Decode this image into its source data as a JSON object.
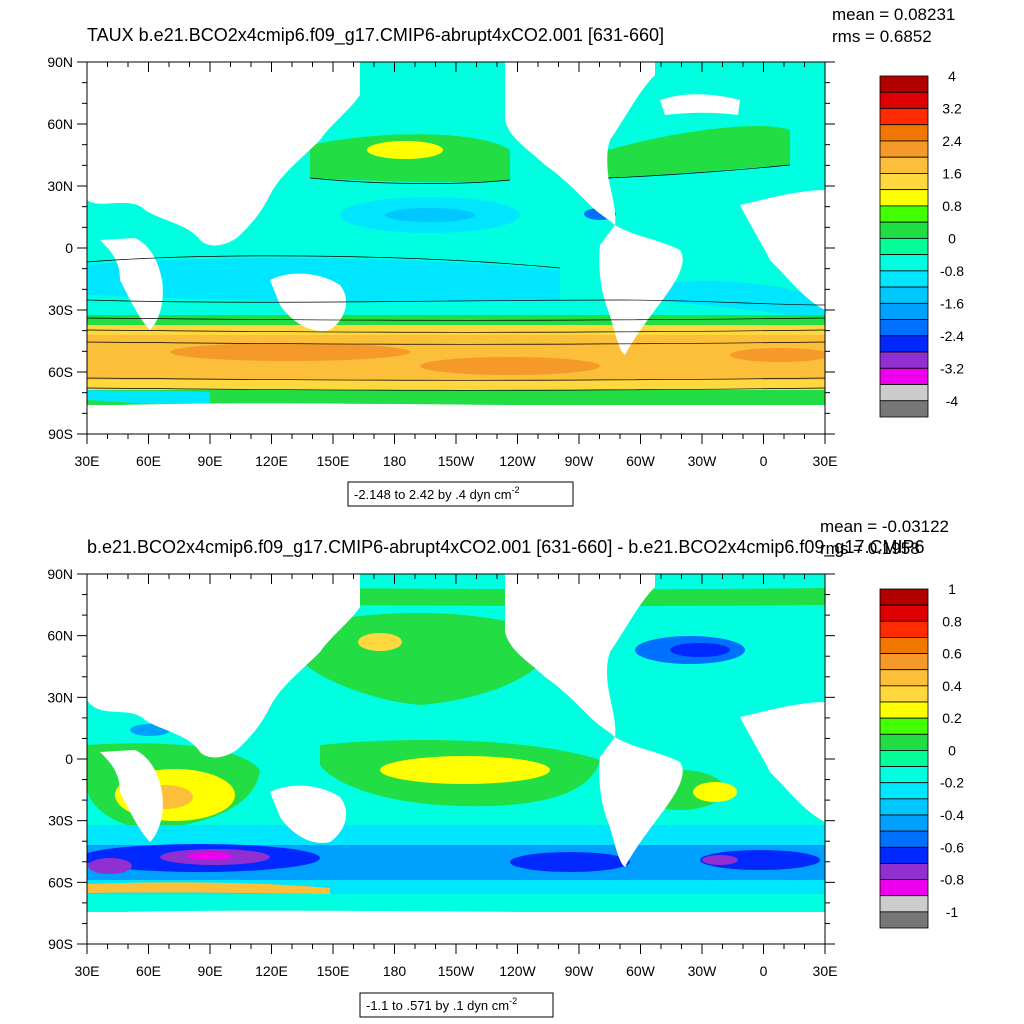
{
  "chart_data": [
    {
      "type": "heatmap",
      "title": "TAUX b.e21.BCO2x4cmip6.f09_g17.CMIP6-abrupt4xCO2.001 [631-660]",
      "stats": {
        "mean": "mean = 0.08231",
        "rms": "rms = 0.6852"
      },
      "x_ticks": [
        "30E",
        "60E",
        "90E",
        "120E",
        "150E",
        "180",
        "150W",
        "120W",
        "90W",
        "60W",
        "30W",
        "0",
        "30E"
      ],
      "y_ticks": [
        "90N",
        "60N",
        "30N",
        "0",
        "30S",
        "60S",
        "90S"
      ],
      "colorbar": {
        "labels": [
          "4",
          "3.2",
          "2.4",
          "1.6",
          "0.8",
          "0",
          "-0.8",
          "-1.6",
          "-2.4",
          "-3.2",
          "-4"
        ],
        "colors": [
          "#b00000",
          "#dd0000",
          "#ff2a00",
          "#f07800",
          "#f59a2a",
          "#fbbf3a",
          "#ffd840",
          "#ffff00",
          "#44ff00",
          "#22dd44",
          "#00ff99",
          "#00ffe0",
          "#00e6ff",
          "#00c8ff",
          "#00a0ff",
          "#0070ff",
          "#0028ff",
          "#9030d0",
          "#ee00ee",
          "#cccccc",
          "#777777"
        ]
      },
      "range_note": {
        "prefix": "-2.148 to 2.42 by .4 dyn cm",
        "sup": "-2"
      }
    },
    {
      "type": "heatmap",
      "title": "b.e21.BCO2x4cmip6.f09_g17.CMIP6-abrupt4xCO2.001 [631-660] - b.e21.BCO2x4cmip6.f09_g17.CMIP6",
      "stats": {
        "mean": "mean = -0.03122",
        "rms": "rms = 0.1958"
      },
      "x_ticks": [
        "30E",
        "60E",
        "90E",
        "120E",
        "150E",
        "180",
        "150W",
        "120W",
        "90W",
        "60W",
        "30W",
        "0",
        "30E"
      ],
      "y_ticks": [
        "90N",
        "60N",
        "30N",
        "0",
        "30S",
        "60S",
        "90S"
      ],
      "colorbar": {
        "labels": [
          "1",
          "0.8",
          "0.6",
          "0.4",
          "0.2",
          "0",
          "-0.2",
          "-0.4",
          "-0.6",
          "-0.8",
          "-1"
        ],
        "colors": [
          "#b00000",
          "#dd0000",
          "#ff2a00",
          "#f07800",
          "#f59a2a",
          "#fbbf3a",
          "#ffd840",
          "#ffff00",
          "#44ff00",
          "#22dd44",
          "#00ff99",
          "#00ffe0",
          "#00e6ff",
          "#00c8ff",
          "#00a0ff",
          "#0070ff",
          "#0028ff",
          "#9030d0",
          "#ee00ee",
          "#cccccc",
          "#777777"
        ]
      },
      "range_note": {
        "prefix": "-1.1 to .571 by .1 dyn cm",
        "sup": "-2"
      }
    }
  ]
}
